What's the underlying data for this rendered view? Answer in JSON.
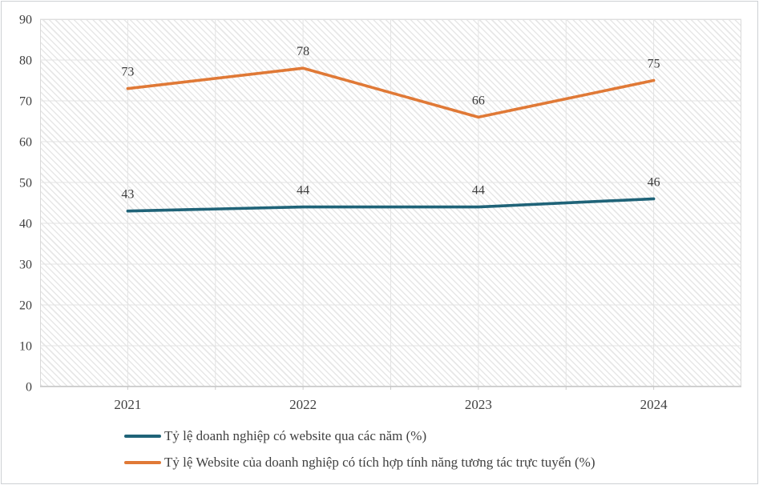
{
  "chart_data": {
    "type": "line",
    "title": "",
    "xlabel": "",
    "ylabel": "",
    "categories": [
      "2021",
      "2022",
      "2023",
      "2024"
    ],
    "series": [
      {
        "name": "Tỷ lệ doanh nghiệp có website qua các năm (%)",
        "color": "#1F6378",
        "values": [
          43,
          44,
          44,
          46
        ]
      },
      {
        "name": "Tỷ lệ Website của doanh nghiệp có tích hợp tính năng tương tác trực tuyến (%)",
        "color": "#E07936",
        "values": [
          73,
          78,
          66,
          75
        ]
      }
    ],
    "ylim": [
      0,
      90
    ],
    "yticks": [
      0,
      10,
      20,
      30,
      40,
      50,
      60,
      70,
      80,
      90
    ],
    "grid": true,
    "data_labels": true,
    "legend_position": "bottom-left",
    "colors": {
      "grid_line": "#E3E3E3",
      "axis_line": "#C0C0C0",
      "tick_mark": "#CCCCCC",
      "plot_border": "#D9D9D9",
      "axis_text": "#404040",
      "data_label_text": "#3B3B3B",
      "background": "#FFFFFF"
    }
  }
}
